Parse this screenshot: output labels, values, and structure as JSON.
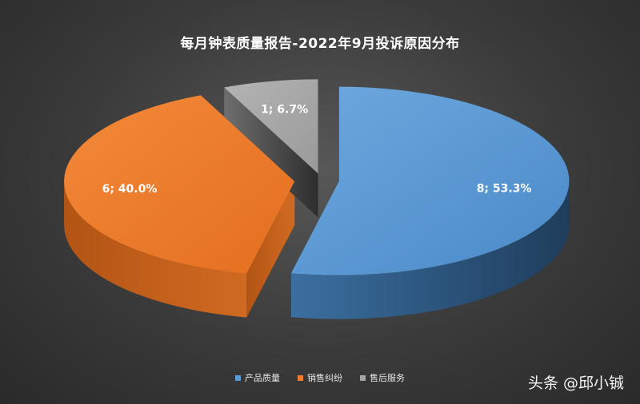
{
  "chart_data": {
    "type": "pie",
    "title": "每月钟表质量报告-2022年9月投诉原因分布",
    "categories": [
      "产品质量",
      "销售纠纷",
      "售后服务"
    ],
    "values": [
      8,
      6,
      1
    ],
    "percentages": [
      "53.3%",
      "40.0%",
      "6.7%"
    ],
    "data_labels": [
      "8; 53.3%",
      "6; 40.0%",
      "1; 6.7%"
    ],
    "colors": [
      "#5B9BD5",
      "#ED7D31",
      "#A5A5A5"
    ],
    "exploded": true,
    "three_d": true,
    "legend_position": "bottom"
  },
  "watermark": "头条 @邱小铖"
}
